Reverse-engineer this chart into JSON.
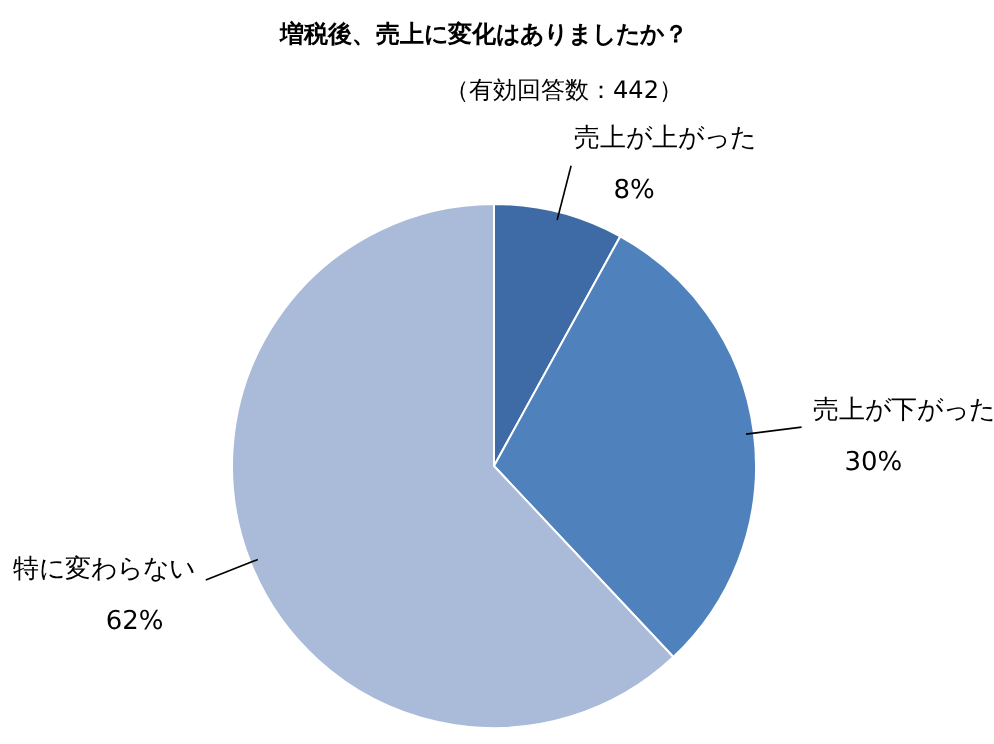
{
  "chart_data": {
    "type": "pie",
    "title": "増税後、売上に変化はありましたか？",
    "subtitle": "（有効回答数：442）",
    "categories": [
      "売上が上がった",
      "売上が下がった",
      "特に変わらない"
    ],
    "values": [
      8,
      30,
      62
    ],
    "colors": [
      "#3e6aa5",
      "#4f81bd",
      "#aabad9"
    ],
    "value_labels": [
      "8%",
      "30%",
      "62%"
    ]
  }
}
